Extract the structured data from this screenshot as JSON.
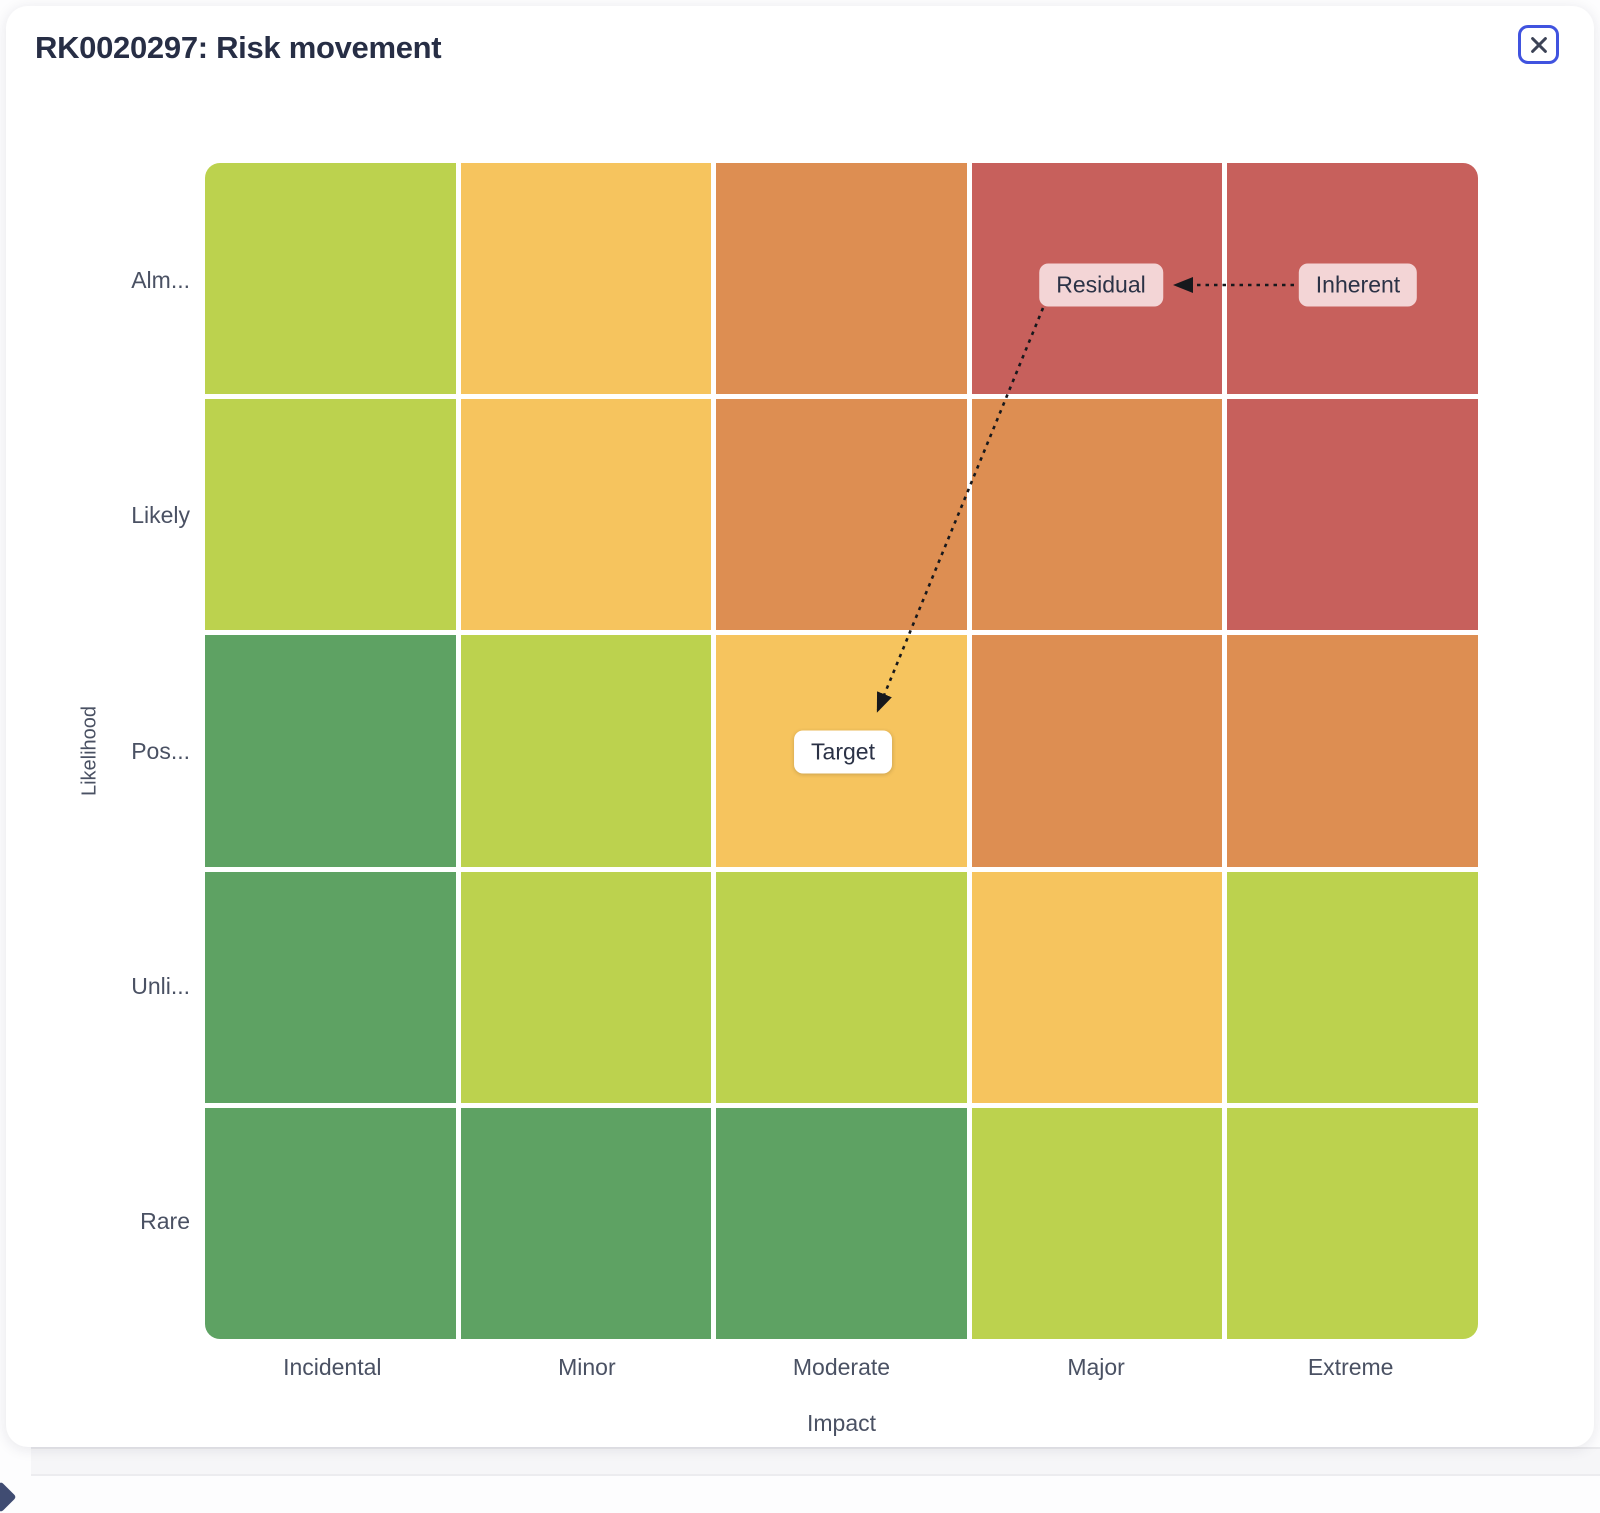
{
  "modal": {
    "title": "RK0020297: Risk movement",
    "close_tooltip": "Close"
  },
  "chart_data": {
    "type": "heatmap",
    "title": "RK0020297: Risk movement",
    "xlabel": "Impact",
    "ylabel": "Likelihood",
    "x_categories": [
      "Incidental",
      "Minor",
      "Moderate",
      "Major",
      "Extreme"
    ],
    "y_categories": [
      "Alm...",
      "Likely",
      "Pos...",
      "Unli...",
      "Rare"
    ],
    "palette": {
      "green": "#5ea263",
      "lightGreen": "#bcd24e",
      "amber": "#f6c45e",
      "orange": "#dd8e52",
      "red": "#c7605c"
    },
    "matrix": [
      [
        "lightGreen",
        "amber",
        "orange",
        "red",
        "red"
      ],
      [
        "lightGreen",
        "amber",
        "orange",
        "orange",
        "red"
      ],
      [
        "green",
        "lightGreen",
        "amber",
        "orange",
        "orange"
      ],
      [
        "green",
        "lightGreen",
        "lightGreen",
        "amber",
        "lightGreen"
      ],
      [
        "green",
        "green",
        "green",
        "lightGreen",
        "lightGreen"
      ]
    ],
    "points": [
      {
        "label": "Inherent",
        "impact": "Extreme",
        "likelihood": "Alm...",
        "marker_style": "pink"
      },
      {
        "label": "Residual",
        "impact": "Major",
        "likelihood": "Alm...",
        "marker_style": "pink"
      },
      {
        "label": "Target",
        "impact": "Moderate",
        "likelihood": "Pos...",
        "marker_style": "white"
      }
    ],
    "movement": [
      {
        "from": "Inherent",
        "to": "Residual",
        "line_style": "dotted"
      },
      {
        "from": "Residual",
        "to": "Target",
        "line_style": "dotted"
      }
    ],
    "layout": {
      "grid": "5x5",
      "gridlines": "white gaps between cells",
      "legend": "none",
      "arrow_color": "#17181c",
      "point_label_pink_bg": "#f3d5d6",
      "point_label_white_bg": "#ffffff"
    }
  }
}
